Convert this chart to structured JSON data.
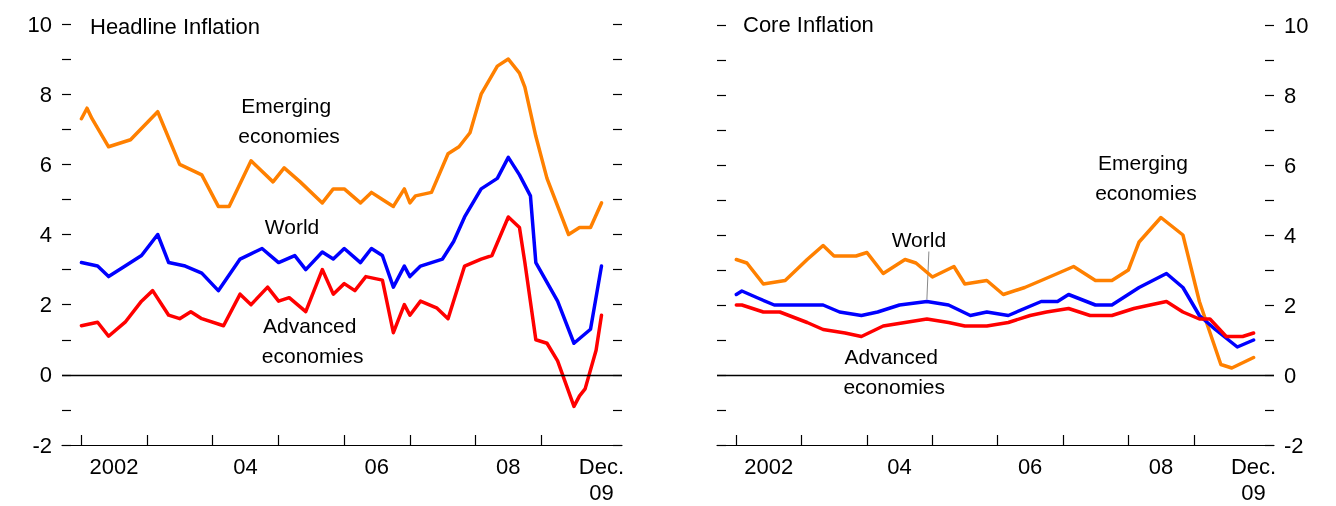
{
  "chart_data": [
    {
      "type": "line",
      "title": "Headline Inflation",
      "marker": "none",
      "line_style": "solid",
      "xlim": [
        "2001-09-15",
        "2010-03-25"
      ],
      "xticks": [
        {
          "value": "2002-01-01",
          "label": null
        },
        {
          "value": "2002-07-01",
          "label": "2002"
        },
        {
          "value": "2003-01-01",
          "label": null
        },
        {
          "value": "2004-01-01",
          "label": null
        },
        {
          "value": "2004-07-01",
          "label": "04"
        },
        {
          "value": "2005-01-01",
          "label": null
        },
        {
          "value": "2006-01-01",
          "label": null
        },
        {
          "value": "2006-07-01",
          "label": "06"
        },
        {
          "value": "2007-01-01",
          "label": null
        },
        {
          "value": "2008-01-01",
          "label": null
        },
        {
          "value": "2008-07-01",
          "label": "08"
        },
        {
          "value": "2009-01-01",
          "label": null
        },
        {
          "value": "2009-12-01",
          "label": "Dec.\n09"
        }
      ],
      "ylim": [
        -2,
        10
      ],
      "yticks": [
        -2,
        {
          "value": -1,
          "label": null
        },
        0,
        {
          "value": 1,
          "label": null
        },
        2,
        {
          "value": 3,
          "label": null
        },
        4,
        {
          "value": 5,
          "label": null
        },
        6,
        {
          "value": 7,
          "label": null
        },
        8,
        {
          "value": 9,
          "label": null
        },
        10
      ],
      "ref_lines": [
        {
          "axis": "y",
          "value": 0,
          "color": "#000000"
        }
      ],
      "series": [
        {
          "name": "Emerging economies",
          "color": "#ff8000",
          "x": [
            "2002-01",
            "2002-02",
            "2002-03",
            "2002-06",
            "2002-10",
            "2003-03",
            "2003-07",
            "2003-11",
            "2004-02",
            "2004-04",
            "2004-08",
            "2004-12",
            "2005-02",
            "2005-05",
            "2005-09",
            "2005-11",
            "2006-01",
            "2006-04",
            "2006-06",
            "2006-08",
            "2006-10",
            "2006-12",
            "2007-01",
            "2007-02",
            "2007-05",
            "2007-08",
            "2007-10",
            "2007-12",
            "2008-02",
            "2008-05",
            "2008-07",
            "2008-09",
            "2008-10",
            "2008-12",
            "2009-02",
            "2009-06",
            "2009-08",
            "2009-10",
            "2009-12"
          ],
          "values": [
            7.3,
            7.6,
            7.3,
            6.5,
            6.7,
            7.5,
            6.0,
            5.7,
            4.8,
            4.8,
            6.1,
            5.5,
            5.9,
            5.5,
            4.9,
            5.3,
            5.3,
            4.9,
            5.2,
            5.0,
            4.8,
            5.3,
            4.9,
            5.1,
            5.2,
            6.3,
            6.5,
            6.9,
            8.0,
            8.8,
            9.0,
            8.6,
            8.2,
            6.8,
            5.6,
            4.0,
            4.2,
            4.2,
            4.9
          ]
        },
        {
          "name": "World",
          "color": "#0000ff",
          "x": [
            "2002-01",
            "2002-04",
            "2002-06",
            "2002-09",
            "2002-12",
            "2003-03",
            "2003-05",
            "2003-08",
            "2003-11",
            "2004-02",
            "2004-06",
            "2004-10",
            "2005-01",
            "2005-04",
            "2005-06",
            "2005-09",
            "2005-11",
            "2006-01",
            "2006-04",
            "2006-06",
            "2006-08",
            "2006-10",
            "2006-12",
            "2007-01",
            "2007-03",
            "2007-07",
            "2007-09",
            "2007-11",
            "2008-02",
            "2008-05",
            "2008-07",
            "2008-09",
            "2008-11",
            "2008-12",
            "2009-04",
            "2009-07",
            "2009-10",
            "2009-12"
          ],
          "values": [
            3.2,
            3.1,
            2.8,
            3.1,
            3.4,
            4.0,
            3.2,
            3.1,
            2.9,
            2.4,
            3.3,
            3.6,
            3.2,
            3.4,
            3.0,
            3.5,
            3.3,
            3.6,
            3.2,
            3.6,
            3.4,
            2.5,
            3.1,
            2.8,
            3.1,
            3.3,
            3.8,
            4.5,
            5.3,
            5.6,
            6.2,
            5.7,
            5.1,
            3.2,
            2.1,
            0.9,
            1.3,
            3.1
          ]
        },
        {
          "name": "Advanced economies",
          "color": "#ff0000",
          "x": [
            "2002-01",
            "2002-04",
            "2002-06",
            "2002-09",
            "2002-12",
            "2003-02",
            "2003-05",
            "2003-07",
            "2003-09",
            "2003-11",
            "2004-03",
            "2004-06",
            "2004-08",
            "2004-11",
            "2005-01",
            "2005-03",
            "2005-06",
            "2005-09",
            "2005-11",
            "2006-01",
            "2006-03",
            "2006-05",
            "2006-08",
            "2006-10",
            "2006-12",
            "2007-01",
            "2007-03",
            "2007-06",
            "2007-08",
            "2007-11",
            "2008-02",
            "2008-04",
            "2008-07",
            "2008-09",
            "2008-10",
            "2008-12",
            "2009-02",
            "2009-04",
            "2009-07",
            "2009-08",
            "2009-09",
            "2009-11",
            "2009-12"
          ],
          "values": [
            1.4,
            1.5,
            1.1,
            1.5,
            2.1,
            2.4,
            1.7,
            1.6,
            1.8,
            1.6,
            1.4,
            2.3,
            2.0,
            2.5,
            2.1,
            2.2,
            1.8,
            3.0,
            2.3,
            2.6,
            2.4,
            2.8,
            2.7,
            1.2,
            2.0,
            1.7,
            2.1,
            1.9,
            1.6,
            3.1,
            3.3,
            3.4,
            4.5,
            4.2,
            3.2,
            1.0,
            0.9,
            0.4,
            -0.9,
            -0.6,
            -0.4,
            0.7,
            1.7
          ]
        }
      ]
    },
    {
      "type": "line",
      "title": "Core Inflation",
      "marker": "none",
      "line_style": "solid",
      "xlim": [
        "2001-09-15",
        "2010-03-25"
      ],
      "xticks": [
        {
          "value": "2002-01-01",
          "label": null
        },
        {
          "value": "2002-07-01",
          "label": "2002"
        },
        {
          "value": "2003-01-01",
          "label": null
        },
        {
          "value": "2004-01-01",
          "label": null
        },
        {
          "value": "2004-07-01",
          "label": "04"
        },
        {
          "value": "2005-01-01",
          "label": null
        },
        {
          "value": "2006-01-01",
          "label": null
        },
        {
          "value": "2006-07-01",
          "label": "06"
        },
        {
          "value": "2007-01-01",
          "label": null
        },
        {
          "value": "2008-01-01",
          "label": null
        },
        {
          "value": "2008-07-01",
          "label": "08"
        },
        {
          "value": "2009-01-01",
          "label": null
        },
        {
          "value": "2009-12-01",
          "label": "Dec.\n09"
        }
      ],
      "y2lim": [
        -2,
        10
      ],
      "y2ticks": [
        -2,
        {
          "value": -1,
          "label": null
        },
        0,
        {
          "value": 1,
          "label": null
        },
        2,
        {
          "value": 3,
          "label": null
        },
        4,
        {
          "value": 5,
          "label": null
        },
        6,
        {
          "value": 7,
          "label": null
        },
        8,
        {
          "value": 9,
          "label": null
        },
        10
      ],
      "ref_lines": [
        {
          "axis": "y2",
          "value": 0,
          "color": "#000000"
        }
      ],
      "series": [
        {
          "name": "Emerging economies",
          "color": "#ff8000",
          "axis": "y2",
          "x": [
            "2002-01",
            "2002-03",
            "2002-06",
            "2002-10",
            "2003-02",
            "2003-05",
            "2003-07",
            "2003-11",
            "2004-01",
            "2004-04",
            "2004-08",
            "2004-10",
            "2005-01",
            "2005-05",
            "2005-07",
            "2005-11",
            "2006-02",
            "2006-06",
            "2006-09",
            "2006-12",
            "2007-03",
            "2007-07",
            "2007-10",
            "2008-01",
            "2008-03",
            "2008-07",
            "2008-11",
            "2009-02",
            "2009-06",
            "2009-08",
            "2009-12"
          ],
          "values": [
            3.3,
            3.2,
            2.6,
            2.7,
            3.3,
            3.7,
            3.4,
            3.4,
            3.5,
            2.9,
            3.3,
            3.2,
            2.8,
            3.1,
            2.6,
            2.7,
            2.3,
            2.5,
            2.7,
            2.9,
            3.1,
            2.7,
            2.7,
            3.0,
            3.8,
            4.5,
            4.0,
            2.1,
            0.3,
            0.2,
            0.5
          ]
        },
        {
          "name": "World",
          "color": "#0000ff",
          "axis": "y2",
          "x": [
            "2002-01",
            "2002-02",
            "2002-05",
            "2002-08",
            "2003-02",
            "2003-05",
            "2003-08",
            "2003-12",
            "2004-03",
            "2004-07",
            "2004-12",
            "2005-04",
            "2005-08",
            "2005-11",
            "2006-03",
            "2006-09",
            "2006-12",
            "2007-02",
            "2007-07",
            "2007-10",
            "2008-03",
            "2008-08",
            "2008-11",
            "2009-02",
            "2009-05",
            "2009-09",
            "2009-12"
          ],
          "values": [
            2.3,
            2.4,
            2.2,
            2.0,
            2.0,
            2.0,
            1.8,
            1.7,
            1.8,
            2.0,
            2.1,
            2.0,
            1.7,
            1.8,
            1.7,
            2.1,
            2.1,
            2.3,
            2.0,
            2.0,
            2.5,
            2.9,
            2.5,
            1.7,
            1.3,
            0.8,
            1.0
          ]
        },
        {
          "name": "Advanced economies",
          "color": "#ff0000",
          "axis": "y2",
          "x": [
            "2002-01",
            "2002-02",
            "2002-06",
            "2002-09",
            "2003-02",
            "2003-05",
            "2003-09",
            "2003-12",
            "2004-04",
            "2004-08",
            "2004-12",
            "2005-04",
            "2005-07",
            "2005-11",
            "2006-03",
            "2006-07",
            "2006-10",
            "2007-02",
            "2007-06",
            "2007-10",
            "2008-02",
            "2008-05",
            "2008-08",
            "2008-11",
            "2009-02",
            "2009-04",
            "2009-07",
            "2009-10",
            "2009-12"
          ],
          "values": [
            2.0,
            2.0,
            1.8,
            1.8,
            1.5,
            1.3,
            1.2,
            1.1,
            1.4,
            1.5,
            1.6,
            1.5,
            1.4,
            1.4,
            1.5,
            1.7,
            1.8,
            1.9,
            1.7,
            1.7,
            1.9,
            2.0,
            2.1,
            1.8,
            1.6,
            1.6,
            1.1,
            1.1,
            1.2
          ]
        }
      ]
    }
  ]
}
